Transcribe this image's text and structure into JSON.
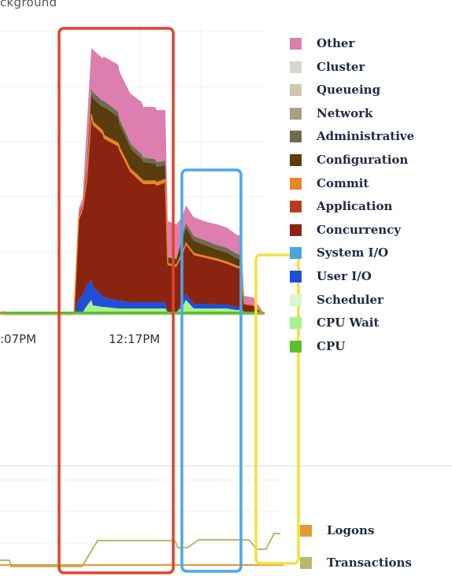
{
  "header": {
    "text": "ckground"
  },
  "chart_data": [
    {
      "type": "area",
      "stacked": true,
      "x_tick_labels": [
        ":07PM",
        "12:17PM"
      ],
      "series": [
        {
          "name": "CPU",
          "color": "#5bbf2a"
        },
        {
          "name": "CPU Wait",
          "color": "#aaf08c"
        },
        {
          "name": "Scheduler",
          "color": "#d9f7cf"
        },
        {
          "name": "User I/O",
          "color": "#1f4ed8"
        },
        {
          "name": "System I/O",
          "color": "#4aa3e0"
        },
        {
          "name": "Concurrency",
          "color": "#8a2410"
        },
        {
          "name": "Application",
          "color": "#b83c1c"
        },
        {
          "name": "Commit",
          "color": "#e6862a"
        },
        {
          "name": "Configuration",
          "color": "#5a3d0c"
        },
        {
          "name": "Administrative",
          "color": "#6f6b52"
        },
        {
          "name": "Network",
          "color": "#a89e80"
        },
        {
          "name": "Queueing",
          "color": "#cfc6ab"
        },
        {
          "name": "Cluster",
          "color": "#d8d6cf"
        },
        {
          "name": "Other",
          "color": "#dc7fae"
        }
      ],
      "legend_order": [
        "Other",
        "Cluster",
        "Queueing",
        "Network",
        "Administrative",
        "Configuration",
        "Commit",
        "Application",
        "Concurrency",
        "System I/O",
        "User I/O",
        "Scheduler",
        "CPU Wait",
        "CPU"
      ],
      "legend_position": "right",
      "grid": true
    },
    {
      "type": "line",
      "series": [
        {
          "name": "Logons",
          "color": "#e39a34"
        },
        {
          "name": "Transactions",
          "color": "#b9b86a"
        }
      ],
      "legend_position": "right",
      "grid": true
    }
  ],
  "highlight_boxes": [
    {
      "name": "red",
      "color": "#e0432b"
    },
    {
      "name": "blue",
      "color": "#4ba8e4"
    },
    {
      "name": "yellow",
      "color": "#f4e03c"
    }
  ]
}
